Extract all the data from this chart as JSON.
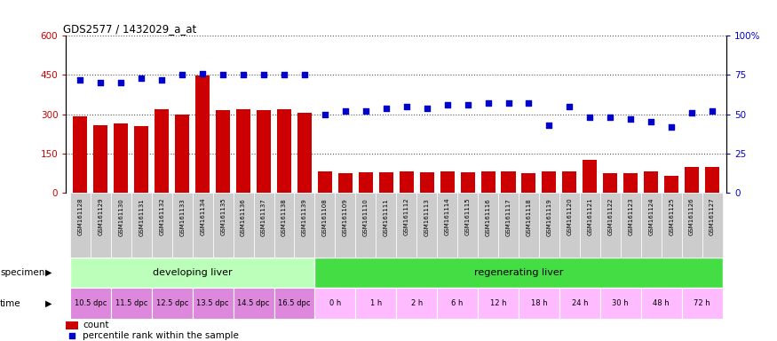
{
  "title": "GDS2577 / 1432029_a_at",
  "samples": [
    "GSM161128",
    "GSM161129",
    "GSM161130",
    "GSM161131",
    "GSM161132",
    "GSM161133",
    "GSM161134",
    "GSM161135",
    "GSM161136",
    "GSM161137",
    "GSM161138",
    "GSM161139",
    "GSM161108",
    "GSM161109",
    "GSM161110",
    "GSM161111",
    "GSM161112",
    "GSM161113",
    "GSM161114",
    "GSM161115",
    "GSM161116",
    "GSM161117",
    "GSM161118",
    "GSM161119",
    "GSM161120",
    "GSM161121",
    "GSM161122",
    "GSM161123",
    "GSM161124",
    "GSM161125",
    "GSM161126",
    "GSM161127"
  ],
  "counts": [
    293,
    258,
    265,
    255,
    320,
    300,
    448,
    315,
    320,
    315,
    320,
    307,
    80,
    75,
    78,
    78,
    80,
    78,
    80,
    78,
    80,
    82,
    75,
    82,
    82,
    125,
    75,
    75,
    80,
    65,
    100,
    100
  ],
  "percentiles": [
    72,
    70,
    70,
    73,
    72,
    75,
    76,
    75,
    75,
    75,
    75,
    75,
    50,
    52,
    52,
    54,
    55,
    54,
    56,
    56,
    57,
    57,
    57,
    43,
    55,
    48,
    48,
    47,
    45,
    42,
    51,
    52
  ],
  "specimen_groups": [
    {
      "label": "developing liver",
      "start": 0,
      "end": 12,
      "color": "#bbffbb"
    },
    {
      "label": "regenerating liver",
      "start": 12,
      "end": 32,
      "color": "#44dd44"
    }
  ],
  "time_labels": [
    {
      "label": "10.5 dpc",
      "start": 0,
      "end": 2,
      "type": "dpc"
    },
    {
      "label": "11.5 dpc",
      "start": 2,
      "end": 4,
      "type": "dpc"
    },
    {
      "label": "12.5 dpc",
      "start": 4,
      "end": 6,
      "type": "dpc"
    },
    {
      "label": "13.5 dpc",
      "start": 6,
      "end": 8,
      "type": "dpc"
    },
    {
      "label": "14.5 dpc",
      "start": 8,
      "end": 10,
      "type": "dpc"
    },
    {
      "label": "16.5 dpc",
      "start": 10,
      "end": 12,
      "type": "dpc"
    },
    {
      "label": "0 h",
      "start": 12,
      "end": 14,
      "type": "h"
    },
    {
      "label": "1 h",
      "start": 14,
      "end": 16,
      "type": "h"
    },
    {
      "label": "2 h",
      "start": 16,
      "end": 18,
      "type": "h"
    },
    {
      "label": "6 h",
      "start": 18,
      "end": 20,
      "type": "h"
    },
    {
      "label": "12 h",
      "start": 20,
      "end": 22,
      "type": "h"
    },
    {
      "label": "18 h",
      "start": 22,
      "end": 24,
      "type": "h"
    },
    {
      "label": "24 h",
      "start": 24,
      "end": 26,
      "type": "h"
    },
    {
      "label": "30 h",
      "start": 26,
      "end": 28,
      "type": "h"
    },
    {
      "label": "48 h",
      "start": 28,
      "end": 30,
      "type": "h"
    },
    {
      "label": "72 h",
      "start": 30,
      "end": 32,
      "type": "h"
    }
  ],
  "time_color_dpc": "#dd88dd",
  "time_color_h": "#ffbbff",
  "bar_color": "#cc0000",
  "dot_color": "#0000cc",
  "ylim_left": [
    0,
    600
  ],
  "ylim_right": [
    0,
    100
  ],
  "yticks_left": [
    0,
    150,
    300,
    450,
    600
  ],
  "yticks_right": [
    0,
    25,
    50,
    75,
    100
  ],
  "bg_color": "#ffffff",
  "tick_label_bg": "#cccccc",
  "grid_color": "#555555"
}
